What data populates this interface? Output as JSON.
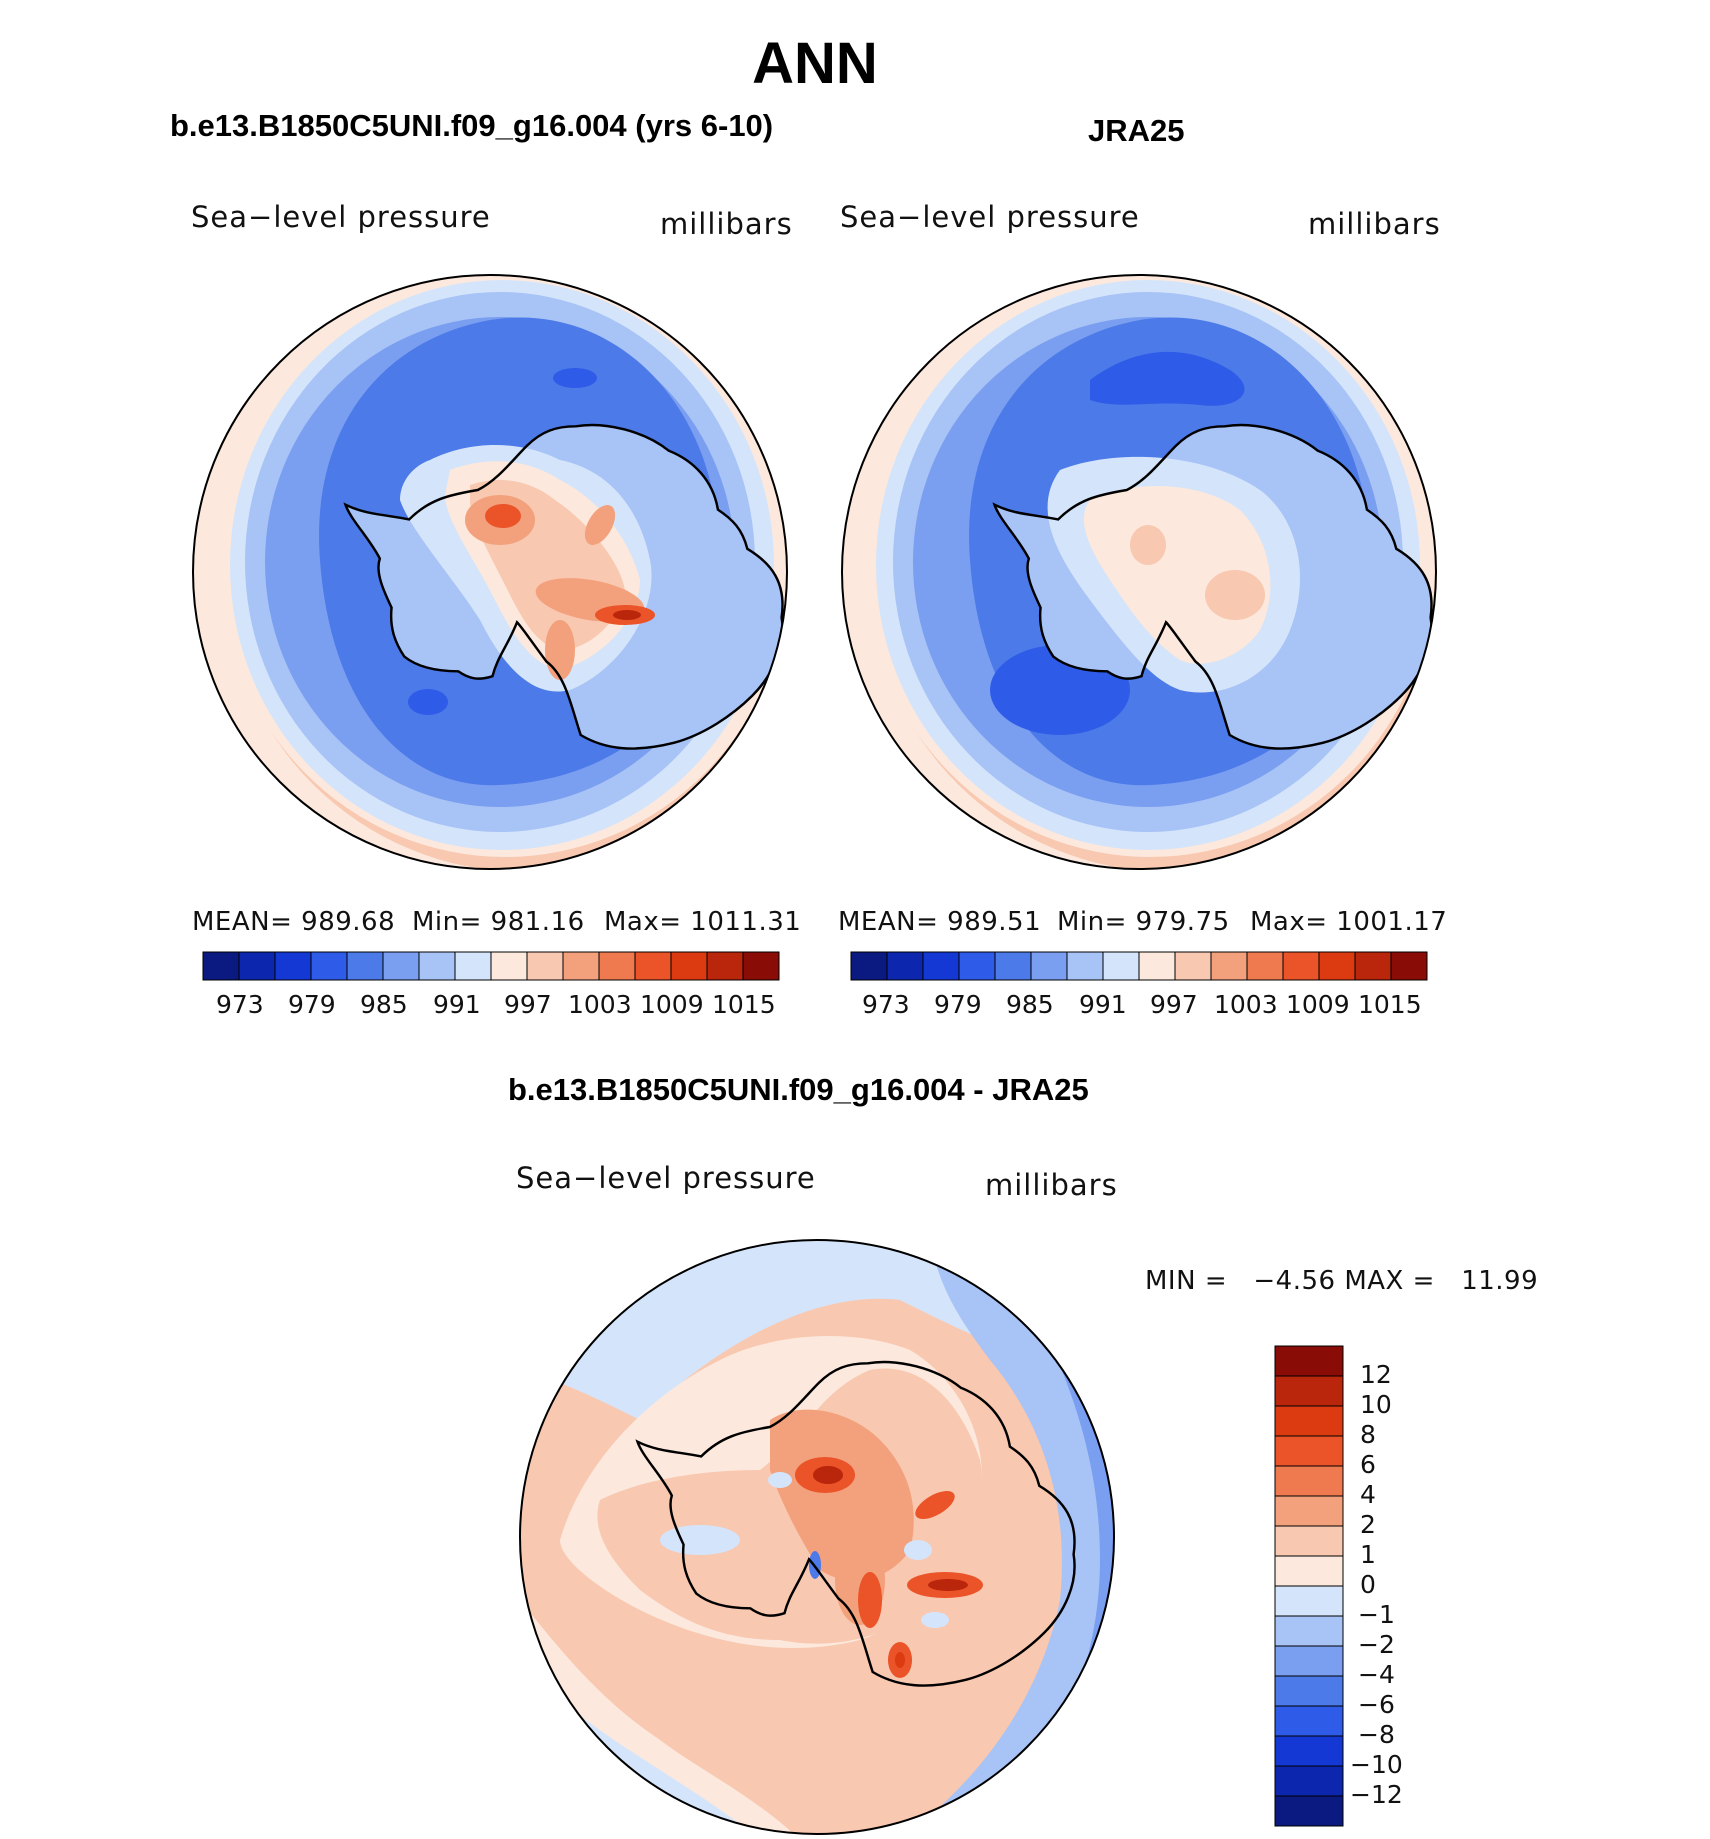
{
  "title": "ANN",
  "colors": {
    "abs_scale": [
      "#0a1a80",
      "#0c27ad",
      "#1338d4",
      "#2e5be8",
      "#4c7ae8",
      "#7a9ef0",
      "#a8c3f5",
      "#d4e5fb",
      "#fce8dc",
      "#f8c8b0",
      "#f3a07c",
      "#ef7a50",
      "#eb5328",
      "#dc3b12",
      "#b9260c",
      "#8a0c06"
    ],
    "diff_scale": [
      "#0a1a80",
      "#0c27ad",
      "#1338d4",
      "#2e5be8",
      "#4c7ae8",
      "#7a9ef0",
      "#a8c3f5",
      "#d4e5fb",
      "#fce8dc",
      "#f8c8b0",
      "#f3a07c",
      "#ef7a50",
      "#eb5328",
      "#dc3b12",
      "#b9260c",
      "#8a0c06"
    ],
    "coastline": "#000000"
  },
  "panels": [
    {
      "case_title": "b.e13.B1850C5UNI.f09_g16.004 (yrs 6-10)",
      "field": "Sea−level pressure",
      "units": "millibars",
      "mean_text": "MEAN= 989.68",
      "min_text": "Min= 981.16",
      "max_text": "Max= 1011.31",
      "mean": 989.68,
      "min": 981.16,
      "max": 1011.31
    },
    {
      "case_title": "JRA25",
      "field": "Sea−level pressure",
      "units": "millibars",
      "mean_text": "MEAN= 989.51",
      "min_text": "Min= 979.75",
      "max_text": "Max= 1001.17",
      "mean": 989.51,
      "min": 979.75,
      "max": 1001.17
    }
  ],
  "abs_ticks": [
    "973",
    "979",
    "985",
    "991",
    "997",
    "1003",
    "1009",
    "1015"
  ],
  "difference": {
    "case_title": "b.e13.B1850C5UNI.f09_g16.004 - JRA25",
    "field": "Sea−level pressure",
    "units": "millibars",
    "minmax_text": "MIN =   −4.56 MAX =   11.99",
    "min": -4.56,
    "max": 11.99,
    "ticks": [
      "12",
      "10",
      "8",
      "6",
      "4",
      "2",
      "1",
      "0",
      "−1",
      "−2",
      "−4",
      "−6",
      "−8",
      "−10",
      "−12"
    ]
  }
}
